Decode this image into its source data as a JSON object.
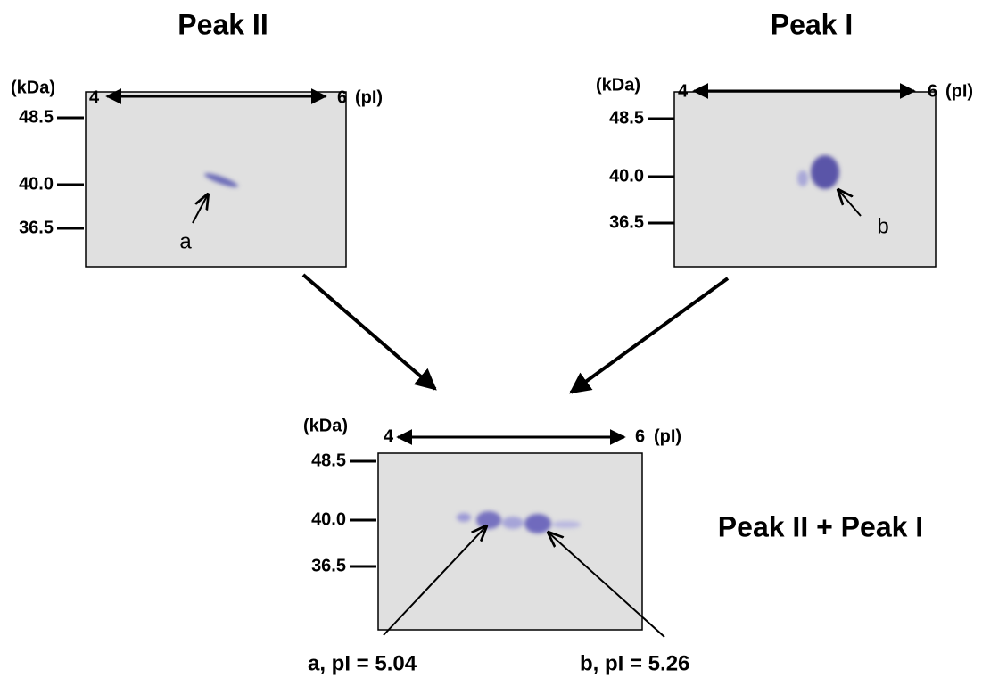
{
  "panels": [
    {
      "title": "Peak II",
      "y_unit": "(kDa)",
      "x_start": "4",
      "x_end": "6",
      "x_unit": "(pI)",
      "y_labels": [
        "48.5",
        "40.0",
        "36.5"
      ],
      "spot_labels": [
        "a"
      ]
    },
    {
      "title": "Peak I",
      "y_unit": "(kDa)",
      "x_start": "4",
      "x_end": "6",
      "x_unit": "(pI)",
      "y_labels": [
        "48.5",
        "40.0",
        "36.5"
      ],
      "spot_labels": [
        "b"
      ]
    },
    {
      "title": "Peak II + Peak I",
      "y_unit": "(kDa)",
      "x_start": "4",
      "x_end": "6",
      "x_unit": "(pI)",
      "y_labels": [
        "48.5",
        "40.0",
        "36.5"
      ],
      "spot_labels": [
        "a, pI = 5.04",
        "b, pI = 5.26"
      ]
    }
  ]
}
